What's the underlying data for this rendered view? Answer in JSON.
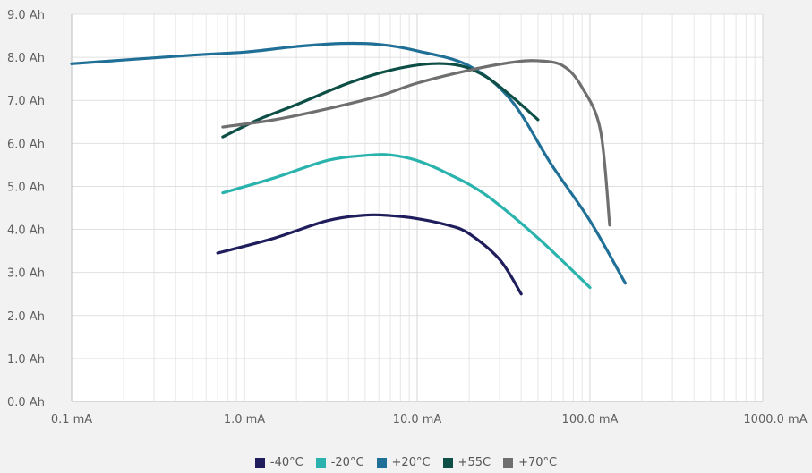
{
  "chart_data": {
    "type": "line",
    "title": "",
    "xlabel": "",
    "ylabel": "",
    "x_scale": "log",
    "xlim": [
      0.1,
      1000
    ],
    "ylim": [
      0,
      9
    ],
    "grid": true,
    "legend_position": "bottom",
    "x_ticks": [
      {
        "value": 0.1,
        "label": "0.1 mA"
      },
      {
        "value": 1,
        "label": "1.0 mA"
      },
      {
        "value": 10,
        "label": "10.0 mA"
      },
      {
        "value": 100,
        "label": "100.0 mA"
      },
      {
        "value": 1000,
        "label": "1000.0 mA"
      }
    ],
    "y_ticks": [
      {
        "value": 0,
        "label": "0.0 Ah"
      },
      {
        "value": 1,
        "label": "1.0 Ah"
      },
      {
        "value": 2,
        "label": "2.0 Ah"
      },
      {
        "value": 3,
        "label": "3.0 Ah"
      },
      {
        "value": 4,
        "label": "4.0 Ah"
      },
      {
        "value": 5,
        "label": "5.0 Ah"
      },
      {
        "value": 6,
        "label": "6.0 Ah"
      },
      {
        "value": 7,
        "label": "7.0 Ah"
      },
      {
        "value": 8,
        "label": "8.0 Ah"
      },
      {
        "value": 9,
        "label": "9.0 Ah"
      }
    ],
    "series": [
      {
        "name": "-40°C",
        "color": "#1f1d5c",
        "points": [
          [
            0.7,
            3.45
          ],
          [
            1.5,
            3.8
          ],
          [
            3,
            4.2
          ],
          [
            5,
            4.33
          ],
          [
            7,
            4.32
          ],
          [
            10,
            4.25
          ],
          [
            15,
            4.1
          ],
          [
            20,
            3.9
          ],
          [
            30,
            3.3
          ],
          [
            40,
            2.5
          ]
        ]
      },
      {
        "name": "-20°C",
        "color": "#2ab3ad",
        "points": [
          [
            0.75,
            4.85
          ],
          [
            1.5,
            5.2
          ],
          [
            3,
            5.6
          ],
          [
            5,
            5.72
          ],
          [
            7,
            5.73
          ],
          [
            10,
            5.6
          ],
          [
            15,
            5.3
          ],
          [
            25,
            4.8
          ],
          [
            50,
            3.8
          ],
          [
            100,
            2.65
          ]
        ]
      },
      {
        "name": "+20°C",
        "color": "#1f6f96",
        "points": [
          [
            0.1,
            7.85
          ],
          [
            0.5,
            8.05
          ],
          [
            1,
            8.12
          ],
          [
            2,
            8.25
          ],
          [
            3.5,
            8.32
          ],
          [
            6,
            8.3
          ],
          [
            10,
            8.15
          ],
          [
            20,
            7.8
          ],
          [
            35,
            7.0
          ],
          [
            60,
            5.5
          ],
          [
            100,
            4.2
          ],
          [
            160,
            2.75
          ]
        ]
      },
      {
        "name": "+55C",
        "color": "#0d4f46",
        "points": [
          [
            0.75,
            6.15
          ],
          [
            1.2,
            6.55
          ],
          [
            2,
            6.9
          ],
          [
            4,
            7.4
          ],
          [
            7,
            7.7
          ],
          [
            12,
            7.85
          ],
          [
            18,
            7.8
          ],
          [
            25,
            7.55
          ],
          [
            35,
            7.1
          ],
          [
            50,
            6.55
          ]
        ]
      },
      {
        "name": "+70°C",
        "color": "#6f6f6f",
        "points": [
          [
            0.75,
            6.38
          ],
          [
            1.5,
            6.55
          ],
          [
            3,
            6.8
          ],
          [
            6,
            7.1
          ],
          [
            10,
            7.4
          ],
          [
            20,
            7.7
          ],
          [
            35,
            7.88
          ],
          [
            50,
            7.92
          ],
          [
            70,
            7.8
          ],
          [
            90,
            7.3
          ],
          [
            115,
            6.3
          ],
          [
            130,
            4.1
          ]
        ]
      }
    ]
  }
}
